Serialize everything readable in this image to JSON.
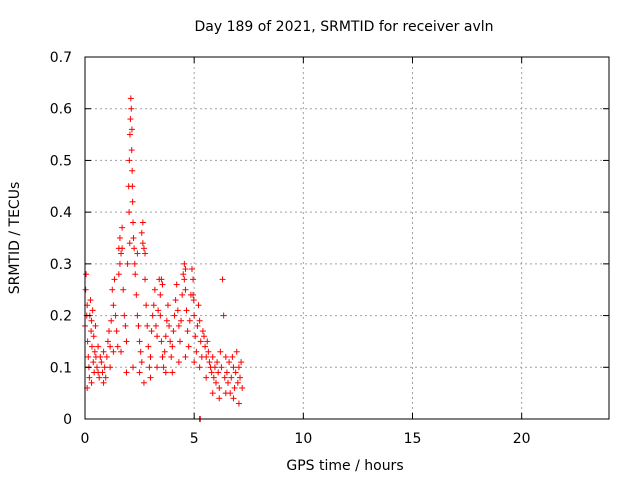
{
  "chart_data": {
    "type": "scatter",
    "title": "Day 189 of 2021, SRMTID for receiver avln",
    "xlabel": "GPS time / hours",
    "ylabel": "SRMTID / TECUs",
    "xlim": [
      0,
      24
    ],
    "ylim": [
      0,
      0.7
    ],
    "xticks": [
      "0",
      "5",
      "10",
      "15",
      "20"
    ],
    "xtick_values": [
      0,
      5,
      10,
      15,
      20
    ],
    "yticks": [
      "0",
      "0.1",
      "0.2",
      "0.3",
      "0.4",
      "0.5",
      "0.6",
      "0.7"
    ],
    "ytick_values": [
      0,
      0.1,
      0.2,
      0.3,
      0.4,
      0.5,
      0.6,
      0.7
    ],
    "grid": true,
    "marker": "+",
    "color": "#ff0000",
    "series": [
      {
        "name": "SRMTID",
        "points": [
          [
            0.0,
            0.18
          ],
          [
            0.03,
            0.25
          ],
          [
            0.05,
            0.28
          ],
          [
            0.08,
            0.2
          ],
          [
            0.1,
            0.22
          ],
          [
            0.12,
            0.15
          ],
          [
            0.15,
            0.12
          ],
          [
            0.18,
            0.1
          ],
          [
            0.2,
            0.08
          ],
          [
            0.22,
            0.2
          ],
          [
            0.25,
            0.23
          ],
          [
            0.28,
            0.17
          ],
          [
            0.3,
            0.19
          ],
          [
            0.32,
            0.14
          ],
          [
            0.35,
            0.21
          ],
          [
            0.38,
            0.11
          ],
          [
            0.4,
            0.16
          ],
          [
            0.42,
            0.09
          ],
          [
            0.45,
            0.13
          ],
          [
            0.48,
            0.18
          ],
          [
            0.5,
            0.12
          ],
          [
            0.55,
            0.1
          ],
          [
            0.6,
            0.14
          ],
          [
            0.65,
            0.08
          ],
          [
            0.7,
            0.12
          ],
          [
            0.75,
            0.11
          ],
          [
            0.8,
            0.09
          ],
          [
            0.85,
            0.13
          ],
          [
            0.9,
            0.1
          ],
          [
            0.95,
            0.08
          ],
          [
            1.0,
            0.12
          ],
          [
            1.05,
            0.15
          ],
          [
            1.1,
            0.17
          ],
          [
            1.15,
            0.14
          ],
          [
            1.2,
            0.19
          ],
          [
            1.25,
            0.25
          ],
          [
            1.3,
            0.22
          ],
          [
            1.35,
            0.27
          ],
          [
            1.4,
            0.2
          ],
          [
            1.45,
            0.17
          ],
          [
            1.5,
            0.14
          ],
          [
            1.55,
            0.28
          ],
          [
            1.6,
            0.35
          ],
          [
            1.65,
            0.32
          ],
          [
            1.7,
            0.37
          ],
          [
            1.75,
            0.25
          ],
          [
            1.8,
            0.2
          ],
          [
            1.85,
            0.18
          ],
          [
            1.9,
            0.15
          ],
          [
            1.95,
            0.3
          ],
          [
            2.0,
            0.45
          ],
          [
            2.03,
            0.5
          ],
          [
            2.06,
            0.55
          ],
          [
            2.08,
            0.58
          ],
          [
            2.1,
            0.62
          ],
          [
            2.12,
            0.6
          ],
          [
            2.14,
            0.52
          ],
          [
            2.16,
            0.48
          ],
          [
            2.18,
            0.42
          ],
          [
            2.2,
            0.38
          ],
          [
            2.25,
            0.33
          ],
          [
            2.3,
            0.28
          ],
          [
            2.35,
            0.24
          ],
          [
            2.4,
            0.2
          ],
          [
            2.45,
            0.18
          ],
          [
            2.5,
            0.15
          ],
          [
            2.55,
            0.13
          ],
          [
            2.6,
            0.11
          ],
          [
            2.65,
            0.38
          ],
          [
            2.7,
            0.33
          ],
          [
            2.75,
            0.27
          ],
          [
            2.8,
            0.22
          ],
          [
            2.85,
            0.18
          ],
          [
            2.9,
            0.14
          ],
          [
            2.95,
            0.1
          ],
          [
            3.0,
            0.12
          ],
          [
            3.05,
            0.17
          ],
          [
            3.1,
            0.2
          ],
          [
            3.15,
            0.22
          ],
          [
            3.2,
            0.25
          ],
          [
            3.25,
            0.18
          ],
          [
            3.3,
            0.16
          ],
          [
            3.35,
            0.21
          ],
          [
            3.4,
            0.27
          ],
          [
            3.45,
            0.2
          ],
          [
            3.5,
            0.15
          ],
          [
            3.55,
            0.12
          ],
          [
            3.6,
            0.1
          ],
          [
            3.65,
            0.13
          ],
          [
            3.7,
            0.16
          ],
          [
            3.75,
            0.19
          ],
          [
            3.8,
            0.22
          ],
          [
            3.85,
            0.18
          ],
          [
            3.9,
            0.15
          ],
          [
            3.95,
            0.12
          ],
          [
            4.0,
            0.14
          ],
          [
            4.05,
            0.17
          ],
          [
            4.1,
            0.2
          ],
          [
            4.15,
            0.23
          ],
          [
            4.2,
            0.26
          ],
          [
            4.25,
            0.21
          ],
          [
            4.3,
            0.18
          ],
          [
            4.35,
            0.15
          ],
          [
            4.4,
            0.19
          ],
          [
            4.45,
            0.24
          ],
          [
            4.5,
            0.28
          ],
          [
            4.55,
            0.3
          ],
          [
            4.6,
            0.25
          ],
          [
            4.65,
            0.21
          ],
          [
            4.7,
            0.17
          ],
          [
            4.75,
            0.14
          ],
          [
            4.8,
            0.19
          ],
          [
            4.85,
            0.24
          ],
          [
            4.9,
            0.29
          ],
          [
            4.95,
            0.27
          ],
          [
            5.0,
            0.2
          ],
          [
            5.05,
            0.16
          ],
          [
            5.1,
            0.13
          ],
          [
            5.15,
            0.18
          ],
          [
            5.2,
            0.22
          ],
          [
            5.25,
            0.19
          ],
          [
            5.3,
            0.15
          ],
          [
            5.35,
            0.12
          ],
          [
            5.4,
            0.17
          ],
          [
            5.45,
            0.16
          ],
          [
            5.5,
            0.14
          ],
          [
            5.55,
            0.12
          ],
          [
            5.6,
            0.15
          ],
          [
            5.65,
            0.13
          ],
          [
            5.7,
            0.11
          ],
          [
            5.75,
            0.1
          ],
          [
            5.8,
            0.09
          ],
          [
            5.85,
            0.12
          ],
          [
            5.9,
            0.08
          ],
          [
            5.95,
            0.1
          ],
          [
            6.0,
            0.07
          ],
          [
            6.05,
            0.11
          ],
          [
            6.1,
            0.09
          ],
          [
            6.15,
            0.06
          ],
          [
            6.2,
            0.13
          ],
          [
            6.25,
            0.1
          ],
          [
            6.3,
            0.27
          ],
          [
            6.35,
            0.2
          ],
          [
            6.4,
            0.08
          ],
          [
            6.45,
            0.12
          ],
          [
            6.5,
            0.09
          ],
          [
            6.55,
            0.07
          ],
          [
            6.6,
            0.11
          ],
          [
            6.65,
            0.05
          ],
          [
            6.7,
            0.08
          ],
          [
            6.75,
            0.12
          ],
          [
            6.8,
            0.1
          ],
          [
            6.85,
            0.06
          ],
          [
            6.9,
            0.09
          ],
          [
            6.95,
            0.13
          ],
          [
            7.0,
            0.07
          ],
          [
            7.05,
            0.1
          ],
          [
            7.1,
            0.08
          ],
          [
            7.15,
            0.11
          ],
          [
            7.2,
            0.06
          ],
          [
            0.1,
            0.06
          ],
          [
            0.3,
            0.07
          ],
          [
            0.6,
            0.09
          ],
          [
            0.85,
            0.07
          ],
          [
            1.15,
            0.1
          ],
          [
            1.3,
            0.13
          ],
          [
            1.65,
            0.13
          ],
          [
            1.9,
            0.09
          ],
          [
            2.2,
            0.1
          ],
          [
            2.5,
            0.09
          ],
          [
            2.7,
            0.07
          ],
          [
            3.0,
            0.08
          ],
          [
            3.3,
            0.1
          ],
          [
            3.7,
            0.09
          ],
          [
            4.0,
            0.09
          ],
          [
            4.3,
            0.11
          ],
          [
            4.6,
            0.12
          ],
          [
            5.0,
            0.11
          ],
          [
            5.25,
            0.1
          ],
          [
            5.55,
            0.08
          ],
          [
            5.85,
            0.05
          ],
          [
            6.15,
            0.04
          ],
          [
            6.45,
            0.05
          ],
          [
            6.8,
            0.04
          ],
          [
            7.05,
            0.03
          ],
          [
            5.25,
            0.0
          ],
          [
            5.28,
            0.0
          ],
          [
            1.55,
            0.33
          ],
          [
            1.6,
            0.3
          ],
          [
            1.7,
            0.33
          ],
          [
            2.02,
            0.4
          ],
          [
            2.05,
            0.34
          ],
          [
            2.15,
            0.56
          ],
          [
            2.17,
            0.45
          ],
          [
            2.22,
            0.35
          ],
          [
            2.28,
            0.3
          ],
          [
            2.4,
            0.32
          ],
          [
            2.6,
            0.36
          ],
          [
            2.65,
            0.34
          ],
          [
            2.75,
            0.32
          ],
          [
            3.45,
            0.24
          ],
          [
            3.5,
            0.27
          ],
          [
            3.55,
            0.26
          ],
          [
            4.55,
            0.27
          ],
          [
            4.6,
            0.29
          ],
          [
            4.95,
            0.24
          ],
          [
            4.98,
            0.23
          ]
        ]
      }
    ]
  }
}
